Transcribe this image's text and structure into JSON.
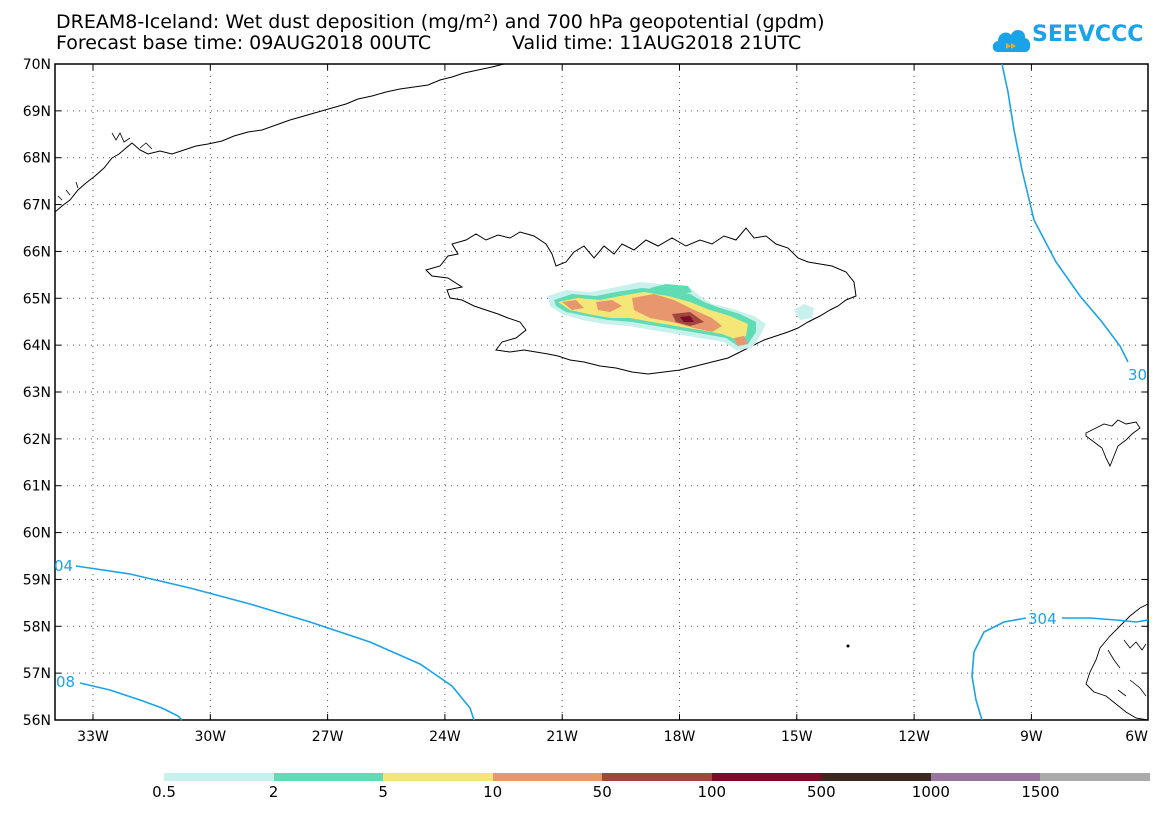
{
  "title": {
    "line1": "DREAM8-Iceland: Wet dust deposition (mg/m²) and 700 hPa geopotential (gpdm)",
    "base_time": "Forecast base time: 09AUG2018 00UTC",
    "valid_time": "Valid time: 11AUG2018 21UTC"
  },
  "logo": {
    "text": "SEEVCCC",
    "icon": "cloud-icon",
    "color": "#1aa3e8"
  },
  "axes": {
    "lat_labels": [
      "70N",
      "69N",
      "68N",
      "67N",
      "66N",
      "65N",
      "64N",
      "63N",
      "62N",
      "61N",
      "60N",
      "59N",
      "58N",
      "57N",
      "56N"
    ],
    "lon_labels": [
      "33W",
      "30W",
      "27W",
      "24W",
      "21W",
      "18W",
      "15W",
      "12W",
      "9W",
      "6W"
    ]
  },
  "contours": {
    "color": "#1aa3e8",
    "labels": [
      "04",
      "08",
      "30",
      "304"
    ]
  },
  "legend": {
    "labels": [
      "0.5",
      "2",
      "5",
      "10",
      "50",
      "100",
      "500",
      "1000",
      "1500"
    ],
    "colors": [
      "#c8f0ec",
      "#5fdcb4",
      "#f5e678",
      "#e8966e",
      "#a0463c",
      "#7d0a28",
      "#3c281e",
      "#9b73a0",
      "#aaaaaa"
    ]
  }
}
